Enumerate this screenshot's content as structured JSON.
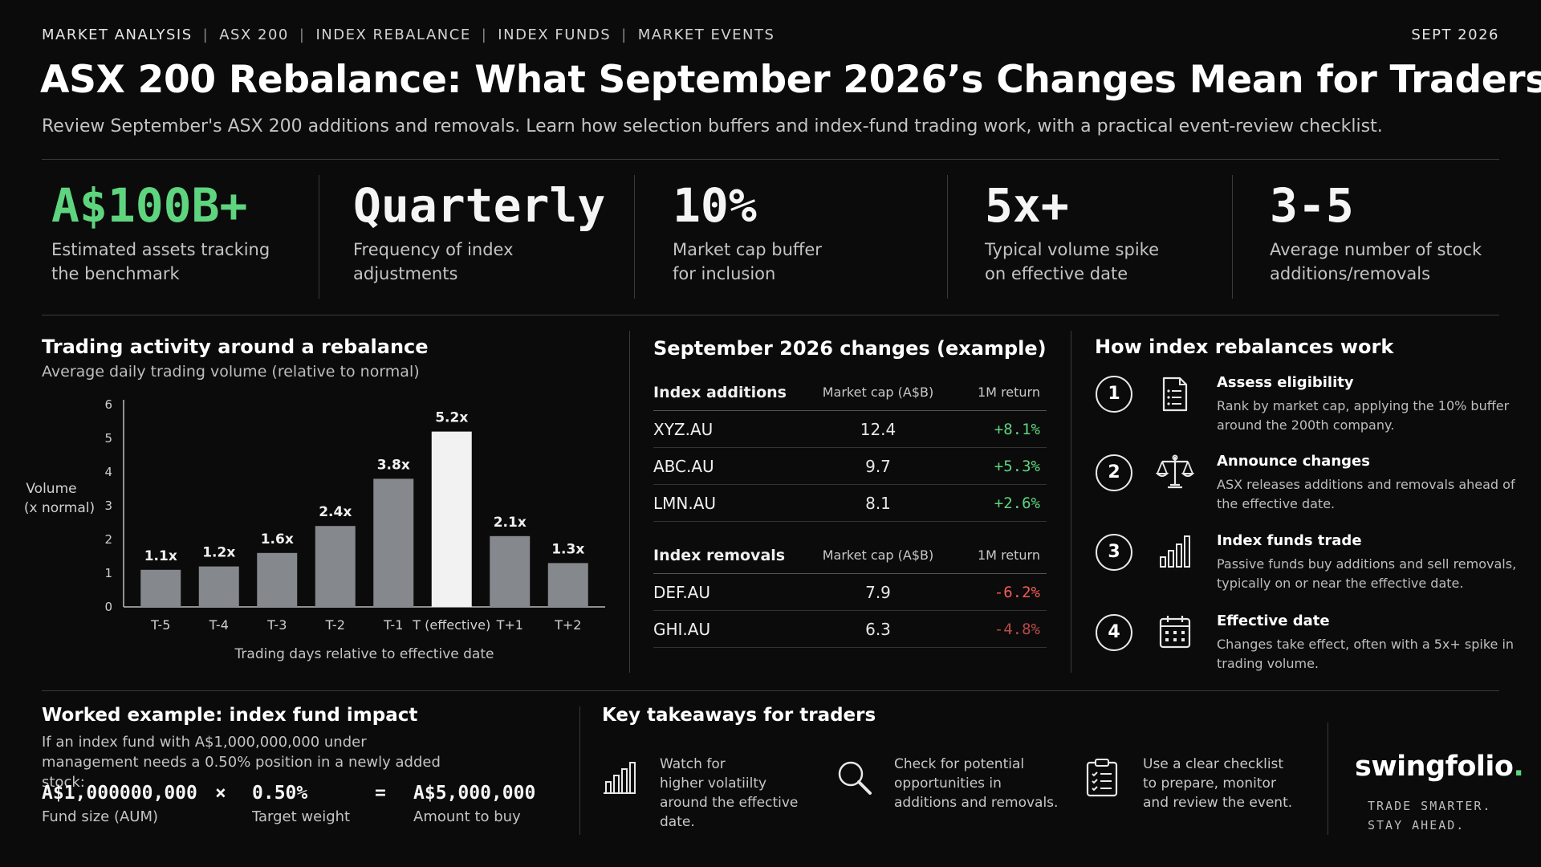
{
  "header": {
    "nav": [
      "MARKET ANALYSIS",
      "ASX 200",
      "INDEX REBALANCE",
      "INDEX FUNDS",
      "MARKET EVENTS"
    ],
    "date": "SEPT 2026",
    "title": "ASX 200 Rebalance: What September 2026’s Changes Mean for Traders",
    "subtitle": "Review September's ASX 200 additions and removals. Learn how selection buffers and index-fund trading work, with a practical event-review checklist."
  },
  "stats": [
    {
      "value": "A$100B+",
      "label": "Estimated assets tracking the benchmark",
      "accent": "#5ed47f"
    },
    {
      "value": "Quarterly",
      "label": "Frequency of index adjustments"
    },
    {
      "value": "10%",
      "label": "Market cap buffer for inclusion"
    },
    {
      "value": "5x+",
      "label": "Typical volume spike on effective date"
    },
    {
      "value": "3-5",
      "label": "Average number of stock additions/removals"
    }
  ],
  "chart_section": {
    "title": "Trading activity around a rebalance",
    "subtitle": "Average daily trading volume (relative to normal)"
  },
  "chart_data": {
    "type": "bar",
    "title": "Trading activity around a rebalance",
    "subtitle": "Average daily trading volume (relative to normal)",
    "categories": [
      "T-5",
      "T-4",
      "T-3",
      "T-2",
      "T-1",
      "T (effective)",
      "T+1",
      "T+2"
    ],
    "values": [
      1.1,
      1.2,
      1.6,
      2.4,
      3.8,
      5.2,
      2.1,
      1.3
    ],
    "data_labels": [
      "1.1x",
      "1.2x",
      "1.6x",
      "2.4x",
      "3.8x",
      "5.2x",
      "2.1x",
      "1.3x"
    ],
    "xlabel": "Trading days relative to effective date",
    "ylabel": [
      "Volume",
      "(x normal)"
    ],
    "yticks": [
      0,
      1,
      2,
      3,
      4,
      5,
      6
    ],
    "ylim": [
      0,
      6
    ],
    "grid": false,
    "highlight_category": "T (effective)",
    "colors": {
      "bar": "#85888d",
      "highlight": "#f2f2f2"
    }
  },
  "table": {
    "title": "September 2026 changes (example)",
    "additions": {
      "header": [
        "Index additions",
        "Market cap (A$B)",
        "1M return"
      ],
      "rows": [
        [
          "XYZ.AU",
          "12.4",
          "+8.1%"
        ],
        [
          "ABC.AU",
          "9.7",
          "+5.3%"
        ],
        [
          "LMN.AU",
          "8.1",
          "+2.6%"
        ]
      ]
    },
    "removals": {
      "header": [
        "Index removals",
        "Market cap (A$B)",
        "1M return"
      ],
      "rows": [
        [
          "DEF.AU",
          "7.9",
          "-6.2%"
        ],
        [
          "GHI.AU",
          "6.3",
          "-4.8%"
        ]
      ]
    }
  },
  "steps": {
    "title": "How index rebalances work",
    "items": [
      {
        "num": "1",
        "icon": "checklist-icon",
        "title": "Assess eligibility",
        "desc": "Rank by market cap, applying the 10% buffer around the 200th company."
      },
      {
        "num": "2",
        "icon": "scales-icon",
        "title": "Announce changes",
        "desc": "ASX releases additions and removals ahead of the effective date."
      },
      {
        "num": "3",
        "icon": "bar-chart-icon",
        "title": "Index funds trade",
        "desc": "Passive funds buy additions and sell removals, typically on or near the effective date."
      },
      {
        "num": "4",
        "icon": "calendar-icon",
        "title": "Effective date",
        "desc": "Changes take effect, often with a 5x+ spike in trading volume."
      }
    ]
  },
  "worked_example": {
    "title": "Worked example: index fund impact",
    "desc": "If an index fund with A$1,000,000,000 under management needs a 0.50% position in a newly added stock:",
    "fund_value": "A$1,000000,000",
    "fund_label": "Fund size (AUM)",
    "times": "×",
    "weight_value": "0.50%",
    "weight_label": "Target weight",
    "equals": "=",
    "amount_value": "A$5,000,000",
    "amount_label": "Amount to buy"
  },
  "takeaways": {
    "title": "Key takeaways for traders",
    "items": [
      {
        "icon": "bar-chart-icon",
        "lines": [
          "Watch for",
          "higher volatiilty",
          "around the effective date."
        ]
      },
      {
        "icon": "magnifier-icon",
        "lines": [
          "Check for potential",
          "opportunities in",
          "additions and removals."
        ]
      },
      {
        "icon": "clipboard-icon",
        "lines": [
          "Use a clear checklist",
          "to prepare, monitor",
          "and review the event."
        ]
      }
    ]
  },
  "brand": {
    "name": "swingfolio",
    "dot": ".",
    "tagline": [
      "TRADE SMARTER.",
      "STAY AHEAD."
    ],
    "accent": "#5ed47f"
  }
}
